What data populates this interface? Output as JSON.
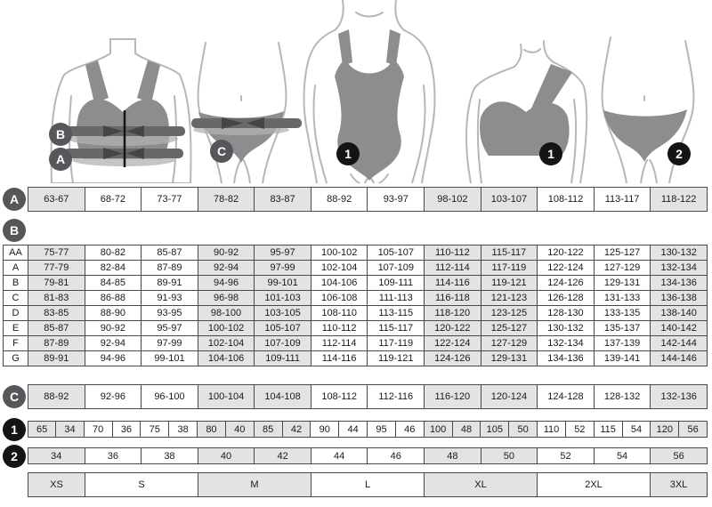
{
  "colors": {
    "cell_shaded": "#e3e3e3",
    "cell_white": "#ffffff",
    "cell_border": "#4a4a4c",
    "text": "#1a1a1a",
    "badge_gray": "#56575a",
    "badge_black": "#141414",
    "silhouette_garment": "#8d8d90",
    "silhouette_outline": "#b7b7b9",
    "measure_band": "#68686b",
    "arrow": "#454547"
  },
  "column_shading": [
    true,
    false,
    false,
    true,
    true,
    false,
    false,
    true,
    true,
    false,
    false,
    true
  ],
  "figure_badges": [
    {
      "label": "B",
      "style": "gray"
    },
    {
      "label": "A",
      "style": "gray"
    },
    {
      "label": "C",
      "style": "gray"
    },
    {
      "label": "1",
      "style": "black"
    },
    {
      "label": "1",
      "style": "black"
    },
    {
      "label": "2",
      "style": "black"
    }
  ],
  "row_badges": [
    {
      "label": "A",
      "style": "gray"
    },
    {
      "label": "B",
      "style": "gray"
    },
    {
      "label": "C",
      "style": "gray"
    },
    {
      "label": "1",
      "style": "black"
    },
    {
      "label": "2",
      "style": "black"
    }
  ],
  "chart_data": [
    {
      "type": "table",
      "id": "A",
      "values": [
        "63-67",
        "68-72",
        "73-77",
        "78-82",
        "83-87",
        "88-92",
        "93-97",
        "98-102",
        "103-107",
        "108-112",
        "113-117",
        "118-122"
      ]
    },
    {
      "type": "table",
      "id": "B",
      "row_headers": [
        "AA",
        "A",
        "B",
        "C",
        "D",
        "E",
        "F",
        "G"
      ],
      "rows": [
        [
          "75-77",
          "80-82",
          "85-87",
          "90-92",
          "95-97",
          "100-102",
          "105-107",
          "110-112",
          "115-117",
          "120-122",
          "125-127",
          "130-132"
        ],
        [
          "77-79",
          "82-84",
          "87-89",
          "92-94",
          "97-99",
          "102-104",
          "107-109",
          "112-114",
          "117-119",
          "122-124",
          "127-129",
          "132-134"
        ],
        [
          "79-81",
          "84-85",
          "89-91",
          "94-96",
          "99-101",
          "104-106",
          "109-111",
          "114-116",
          "119-121",
          "124-126",
          "129-131",
          "134-136"
        ],
        [
          "81-83",
          "86-88",
          "91-93",
          "96-98",
          "101-103",
          "106-108",
          "111-113",
          "116-118",
          "121-123",
          "126-128",
          "131-133",
          "136-138"
        ],
        [
          "83-85",
          "88-90",
          "93-95",
          "98-100",
          "103-105",
          "108-110",
          "113-115",
          "118-120",
          "123-125",
          "128-130",
          "133-135",
          "138-140"
        ],
        [
          "85-87",
          "90-92",
          "95-97",
          "100-102",
          "105-107",
          "110-112",
          "115-117",
          "120-122",
          "125-127",
          "130-132",
          "135-137",
          "140-142"
        ],
        [
          "87-89",
          "92-94",
          "97-99",
          "102-104",
          "107-109",
          "112-114",
          "117-119",
          "122-124",
          "127-129",
          "132-134",
          "137-139",
          "142-144"
        ],
        [
          "89-91",
          "94-96",
          "99-101",
          "104-106",
          "109-111",
          "114-116",
          "119-121",
          "124-126",
          "129-131",
          "134-136",
          "139-141",
          "144-146"
        ]
      ]
    },
    {
      "type": "table",
      "id": "C",
      "values": [
        "88-92",
        "92-96",
        "96-100",
        "100-104",
        "104-108",
        "108-112",
        "112-116",
        "116-120",
        "120-124",
        "124-128",
        "128-132",
        "132-136"
      ]
    },
    {
      "type": "table",
      "id": "1",
      "pairs": [
        [
          "65",
          "34"
        ],
        [
          "70",
          "36"
        ],
        [
          "75",
          "38"
        ],
        [
          "80",
          "40"
        ],
        [
          "85",
          "42"
        ],
        [
          "90",
          "44"
        ],
        [
          "95",
          "46"
        ],
        [
          "100",
          "48"
        ],
        [
          "105",
          "50"
        ],
        [
          "110",
          "52"
        ],
        [
          "115",
          "54"
        ],
        [
          "120",
          "56"
        ]
      ]
    },
    {
      "type": "table",
      "id": "2",
      "values": [
        "34",
        "36",
        "38",
        "40",
        "42",
        "44",
        "46",
        "48",
        "50",
        "52",
        "54",
        "56"
      ]
    },
    {
      "type": "table",
      "id": "sizes",
      "cells": [
        {
          "label": "XS",
          "span": 1,
          "shaded": true
        },
        {
          "label": "S",
          "span": 2,
          "shaded": false
        },
        {
          "label": "M",
          "span": 2,
          "shaded": true
        },
        {
          "label": "L",
          "span": 2,
          "shaded": false
        },
        {
          "label": "XL",
          "span": 2,
          "shaded": true
        },
        {
          "label": "2XL",
          "span": 2,
          "shaded": false
        },
        {
          "label": "3XL",
          "span": 1,
          "shaded": true
        }
      ]
    }
  ]
}
